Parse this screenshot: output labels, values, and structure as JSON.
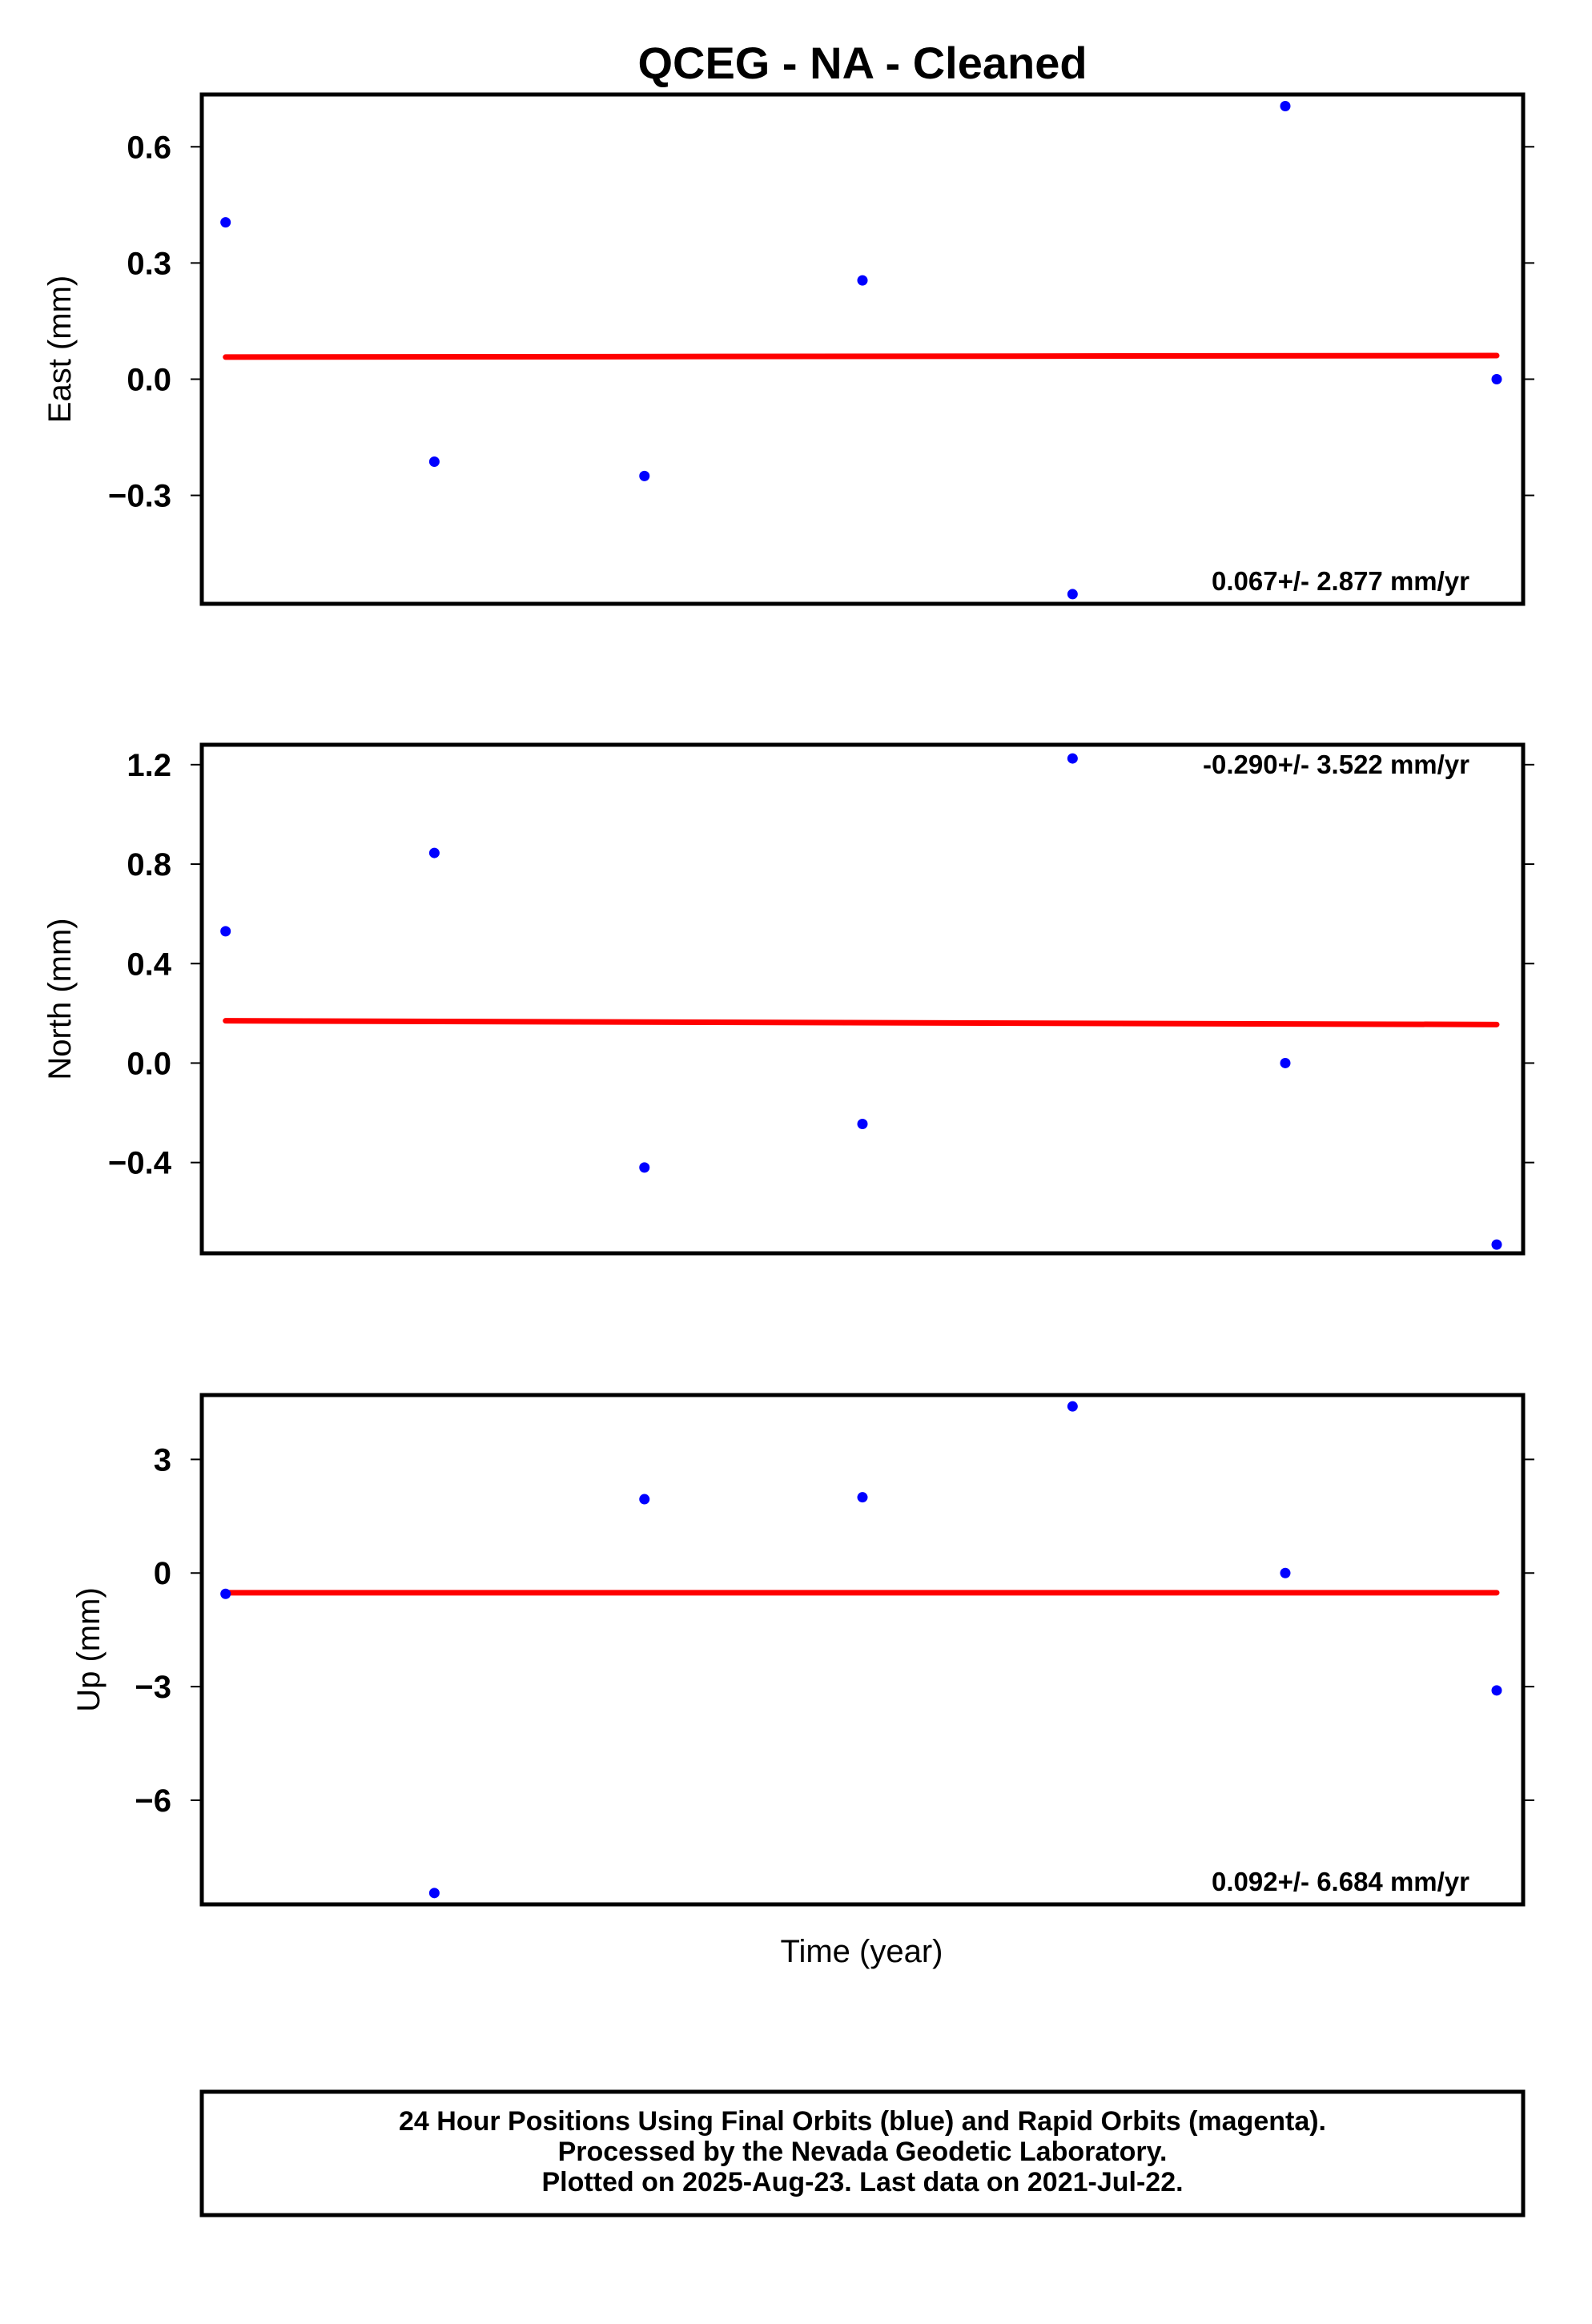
{
  "title": "QCEG  - NA - Cleaned",
  "x_axis_label": "Time (year)",
  "footer": {
    "line1": "24 Hour Positions Using Final Orbits (blue) and Rapid Orbits (magenta).",
    "line2": "Processed by the Nevada Geodetic Laboratory.",
    "line3": "Plotted on 2025-Aug-23. Last data on 2021-Jul-22."
  },
  "colors": {
    "points": "#0000ff",
    "trend": "#ff0000",
    "frame": "#000000"
  },
  "chart_data": [
    {
      "type": "scatter",
      "name": "east",
      "ylabel": "East (mm)",
      "yticks": [
        -0.3,
        0.0,
        0.3,
        0.6
      ],
      "ytick_labels": [
        "−0.3",
        "0.0",
        "0.3",
        "0.6"
      ],
      "ylim": [
        -0.58,
        0.735
      ],
      "xlim": [
        0,
        1
      ],
      "x": [
        0.018,
        0.176,
        0.335,
        0.5,
        0.659,
        0.82,
        0.98
      ],
      "y": [
        0.405,
        -0.213,
        -0.25,
        0.255,
        -0.555,
        0.705,
        0.0
      ],
      "trend": {
        "x": [
          0.018,
          0.98
        ],
        "y": [
          0.057,
          0.061
        ]
      },
      "rate_label": "0.067+/- 2.877 mm/yr",
      "rate_position": "bottom-right"
    },
    {
      "type": "scatter",
      "name": "north",
      "ylabel": "North (mm)",
      "yticks": [
        -0.4,
        0.0,
        0.4,
        0.8,
        1.2
      ],
      "ytick_labels": [
        "−0.4",
        "0.0",
        "0.4",
        "0.8",
        "1.2"
      ],
      "ylim": [
        -0.765,
        1.28
      ],
      "xlim": [
        0,
        1
      ],
      "x": [
        0.018,
        0.176,
        0.335,
        0.5,
        0.659,
        0.82,
        0.98
      ],
      "y": [
        0.53,
        0.845,
        -0.42,
        -0.245,
        1.225,
        0.0,
        -0.73
      ],
      "trend": {
        "x": [
          0.018,
          0.98
        ],
        "y": [
          0.17,
          0.155
        ]
      },
      "rate_label": "-0.290+/- 3.522 mm/yr",
      "rate_position": "top-right"
    },
    {
      "type": "scatter",
      "name": "up",
      "ylabel": "Up (mm)",
      "yticks": [
        -6,
        -3,
        0,
        3
      ],
      "ytick_labels": [
        "−6",
        "−3",
        "0",
        "3"
      ],
      "ylim": [
        -8.75,
        4.7
      ],
      "xlim": [
        0,
        1
      ],
      "x": [
        0.018,
        0.176,
        0.335,
        0.5,
        0.659,
        0.82,
        0.98
      ],
      "y": [
        -0.55,
        -8.45,
        1.95,
        2.0,
        4.4,
        0.0,
        -3.1
      ],
      "trend": {
        "x": [
          0.018,
          0.98
        ],
        "y": [
          -0.52,
          -0.52
        ]
      },
      "rate_label": "0.092+/- 6.684 mm/yr",
      "rate_position": "bottom-right"
    }
  ]
}
